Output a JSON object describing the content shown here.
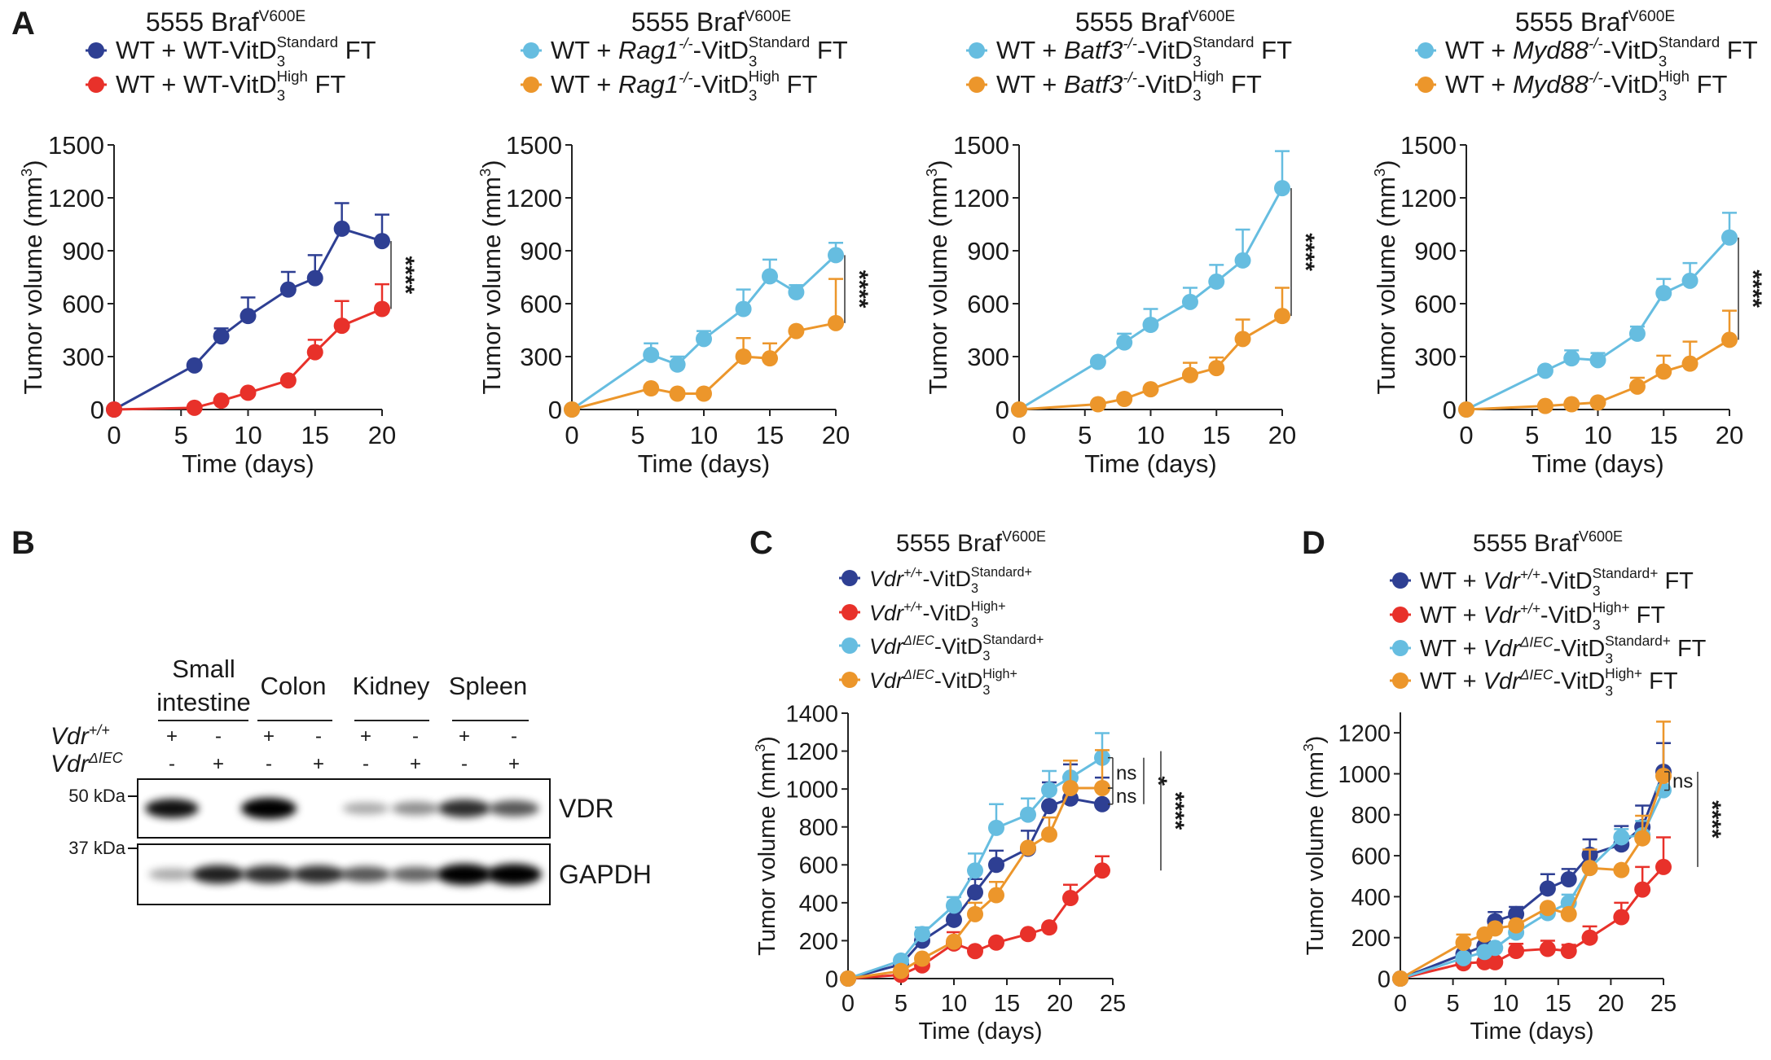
{
  "panel_letters": [
    "A",
    "B",
    "C",
    "D"
  ],
  "colors": {
    "navy": "#2e3f93",
    "red": "#e8312a",
    "light_blue": "#66bde0",
    "orange": "#ec962b"
  },
  "chart_data": [
    {
      "panel": "A",
      "type": "line",
      "title": "5555 Braf",
      "title_sup": "V600E",
      "xlabel": "Time (days)",
      "ylabel": "Tumor volume (mm",
      "ylabel_sup": "3",
      "ylabel_end": ")",
      "xlim": [
        0,
        20
      ],
      "ylim": [
        0,
        1500
      ],
      "xticks": [
        0,
        5,
        10,
        15,
        20
      ],
      "yticks": [
        0,
        300,
        600,
        900,
        1200,
        1500
      ],
      "series": [
        {
          "legend": {
            "pre": "WT + WT-VitD",
            "gene": "",
            "gsup": "",
            "mid": "",
            "sub": "3",
            "sup": "Standard",
            "post": " FT"
          },
          "color": "#2e3f93",
          "x": [
            0,
            6,
            8,
            10,
            13,
            15,
            17,
            20
          ],
          "y": [
            0,
            250,
            415,
            530,
            680,
            745,
            1025,
            955
          ],
          "err": [
            null,
            null,
            460,
            635,
            780,
            875,
            1170,
            1105
          ]
        },
        {
          "legend": {
            "pre": "WT + WT-VitD",
            "gene": "",
            "gsup": "",
            "mid": "",
            "sub": "3",
            "sup": "High",
            "post": " FT"
          },
          "color": "#e8312a",
          "x": [
            0,
            6,
            8,
            10,
            13,
            15,
            17,
            20
          ],
          "y": [
            0,
            10,
            50,
            95,
            165,
            325,
            475,
            570
          ],
          "err": [
            null,
            null,
            null,
            null,
            null,
            395,
            615,
            710
          ]
        }
      ],
      "significance": [
        {
          "label": "****",
          "from": 955,
          "to": 570,
          "level": 0
        }
      ]
    },
    {
      "panel": "A",
      "type": "line",
      "title": "5555 Braf",
      "title_sup": "V600E",
      "xlabel": "Time (days)",
      "ylabel": "Tumor volume (mm",
      "ylabel_sup": "3",
      "ylabel_end": ")",
      "xlim": [
        0,
        20
      ],
      "ylim": [
        0,
        1500
      ],
      "xticks": [
        0,
        5,
        10,
        15,
        20
      ],
      "yticks": [
        0,
        300,
        600,
        900,
        1200,
        1500
      ],
      "series": [
        {
          "legend": {
            "pre": "WT + ",
            "gene": "Rag1",
            "gsup": "-/-",
            "mid": "-VitD",
            "sub": "3",
            "sup": "Standard",
            "post": " FT"
          },
          "color": "#66bde0",
          "x": [
            0,
            6,
            8,
            10,
            13,
            15,
            17,
            20
          ],
          "y": [
            0,
            310,
            255,
            400,
            570,
            755,
            665,
            875
          ],
          "err": [
            null,
            375,
            300,
            445,
            680,
            850,
            705,
            945
          ]
        },
        {
          "legend": {
            "pre": "WT + ",
            "gene": "Rag1",
            "gsup": "-/-",
            "mid": "-VitD",
            "sub": "3",
            "sup": "High",
            "post": " FT"
          },
          "color": "#ec962b",
          "x": [
            0,
            6,
            8,
            10,
            13,
            15,
            17,
            20
          ],
          "y": [
            0,
            120,
            90,
            90,
            300,
            290,
            445,
            490
          ],
          "err": [
            null,
            null,
            null,
            null,
            405,
            375,
            445,
            740
          ]
        }
      ],
      "significance": [
        {
          "label": "****",
          "from": 875,
          "to": 490,
          "level": 0
        }
      ]
    },
    {
      "panel": "A",
      "type": "line",
      "title": "5555 Braf",
      "title_sup": "V600E",
      "xlabel": "Time (days)",
      "ylabel": "Tumor volume (mm",
      "ylabel_sup": "3",
      "ylabel_end": ")",
      "xlim": [
        0,
        20
      ],
      "ylim": [
        0,
        1500
      ],
      "xticks": [
        0,
        5,
        10,
        15,
        20
      ],
      "yticks": [
        0,
        300,
        600,
        900,
        1200,
        1500
      ],
      "series": [
        {
          "legend": {
            "pre": "WT + ",
            "gene": "Batf3",
            "gsup": "-/-",
            "mid": "-VitD",
            "sub": "3",
            "sup": "Standard",
            "post": " FT"
          },
          "color": "#66bde0",
          "x": [
            0,
            6,
            8,
            10,
            13,
            15,
            17,
            20
          ],
          "y": [
            0,
            270,
            380,
            480,
            610,
            725,
            845,
            1255
          ],
          "err": [
            null,
            null,
            430,
            570,
            690,
            820,
            1020,
            1465
          ]
        },
        {
          "legend": {
            "pre": "WT + ",
            "gene": "Batf3",
            "gsup": "-/-",
            "mid": "-VitD",
            "sub": "3",
            "sup": "High",
            "post": " FT"
          },
          "color": "#ec962b",
          "x": [
            0,
            6,
            8,
            10,
            13,
            15,
            17,
            20
          ],
          "y": [
            0,
            30,
            60,
            115,
            195,
            235,
            400,
            530
          ],
          "err": [
            null,
            null,
            null,
            null,
            265,
            295,
            510,
            690
          ]
        }
      ],
      "significance": [
        {
          "label": "****",
          "from": 1255,
          "to": 530,
          "level": 0
        }
      ]
    },
    {
      "panel": "A",
      "type": "line",
      "title": "5555 Braf",
      "title_sup": "V600E",
      "xlabel": "Time (days)",
      "ylabel": "Tumor volume (mm",
      "ylabel_sup": "3",
      "ylabel_end": ")",
      "xlim": [
        0,
        20
      ],
      "ylim": [
        0,
        1500
      ],
      "xticks": [
        0,
        5,
        10,
        15,
        20
      ],
      "yticks": [
        0,
        300,
        600,
        900,
        1200,
        1500
      ],
      "series": [
        {
          "legend": {
            "pre": "WT + ",
            "gene": "Myd88",
            "gsup": "-/-",
            "mid": "-VitD",
            "sub": "3",
            "sup": "Standard",
            "post": " FT"
          },
          "color": "#66bde0",
          "x": [
            0,
            6,
            8,
            10,
            13,
            15,
            17,
            20
          ],
          "y": [
            0,
            220,
            290,
            280,
            430,
            660,
            730,
            975
          ],
          "err": [
            null,
            null,
            335,
            320,
            470,
            740,
            830,
            1115
          ]
        },
        {
          "legend": {
            "pre": "WT + ",
            "gene": "Myd88",
            "gsup": "-/-",
            "mid": "-VitD",
            "sub": "3",
            "sup": "High",
            "post": " FT"
          },
          "color": "#ec962b",
          "x": [
            0,
            6,
            8,
            10,
            13,
            15,
            17,
            20
          ],
          "y": [
            0,
            20,
            30,
            40,
            130,
            215,
            260,
            395
          ],
          "err": [
            null,
            null,
            null,
            null,
            180,
            305,
            385,
            560
          ]
        }
      ],
      "significance": [
        {
          "label": "****",
          "from": 975,
          "to": 395,
          "level": 0
        }
      ]
    },
    {
      "panel": "C",
      "type": "line",
      "title": "5555 Braf",
      "title_sup": "V600E",
      "xlabel": "Time (days)",
      "ylabel": "Tumor volume (mm",
      "ylabel_sup": "3",
      "ylabel_end": ")",
      "xlim": [
        0,
        25
      ],
      "ylim": [
        0,
        1400
      ],
      "xticks": [
        0,
        5,
        10,
        15,
        20,
        25
      ],
      "yticks": [
        0,
        200,
        400,
        600,
        800,
        1000,
        1200,
        1400
      ],
      "series": [
        {
          "legend": {
            "pre": "",
            "gene": "Vdr",
            "gsup": "+/+",
            "mid": "-VitD",
            "sub": "3",
            "sup": "Standard+",
            "post": ""
          },
          "color": "#2e3f93",
          "x": [
            0,
            5,
            7,
            10,
            12,
            14,
            17,
            19,
            21,
            24
          ],
          "y": [
            0,
            75,
            200,
            310,
            455,
            600,
            685,
            910,
            950,
            920
          ],
          "err": [
            null,
            null,
            null,
            370,
            525,
            675,
            780,
            1035,
            1130,
            1060
          ]
        },
        {
          "legend": {
            "pre": "",
            "gene": "Vdr",
            "gsup": "+/+",
            "mid": "-VitD",
            "sub": "3",
            "sup": "High+",
            "post": ""
          },
          "color": "#e8312a",
          "x": [
            0,
            5,
            7,
            10,
            12,
            14,
            17,
            19,
            21,
            24
          ],
          "y": [
            0,
            20,
            70,
            185,
            145,
            190,
            235,
            270,
            425,
            570
          ],
          "err": [
            null,
            null,
            null,
            245,
            null,
            null,
            null,
            null,
            495,
            645
          ]
        },
        {
          "legend": {
            "pre": "",
            "gene": "Vdr",
            "gsup": "ΔIEC",
            "mid": "-VitD",
            "sub": "3",
            "sup": "Standard+",
            "post": ""
          },
          "color": "#66bde0",
          "x": [
            0,
            5,
            7,
            10,
            12,
            14,
            17,
            19,
            21,
            24
          ],
          "y": [
            0,
            95,
            235,
            385,
            570,
            795,
            865,
            995,
            1060,
            1165
          ],
          "err": [
            null,
            null,
            270,
            430,
            660,
            920,
            950,
            1095,
            1150,
            1295
          ]
        },
        {
          "legend": {
            "pre": "",
            "gene": "Vdr",
            "gsup": "ΔIEC",
            "mid": "-VitD",
            "sub": "3",
            "sup": "High+",
            "post": ""
          },
          "color": "#ec962b",
          "x": [
            0,
            5,
            7,
            10,
            12,
            14,
            17,
            19,
            21,
            24
          ],
          "y": [
            0,
            40,
            105,
            195,
            340,
            440,
            690,
            760,
            1005,
            1005
          ],
          "err": [
            null,
            null,
            null,
            null,
            400,
            510,
            null,
            850,
            1150,
            1205
          ]
        }
      ],
      "significance": [
        {
          "label": "ns",
          "from": 1165,
          "to": 1005,
          "level": 0
        },
        {
          "label": "ns",
          "from": 1005,
          "to": 920,
          "level": 0
        },
        {
          "label": "*",
          "from": 1165,
          "to": 920,
          "level": 1
        },
        {
          "label": "****",
          "from": 1200,
          "to": 570,
          "level": 2
        }
      ]
    },
    {
      "panel": "D",
      "type": "line",
      "title": "5555 Braf",
      "title_sup": "V600E",
      "xlabel": "Time (days)",
      "ylabel": "Tumor volume (mm",
      "ylabel_sup": "3",
      "ylabel_end": ")",
      "xlim": [
        0,
        25
      ],
      "ylim": [
        0,
        1300
      ],
      "xticks": [
        0,
        5,
        10,
        15,
        20,
        25
      ],
      "yticks": [
        0,
        200,
        400,
        600,
        800,
        1000,
        1200
      ],
      "series": [
        {
          "legend": {
            "pre": "WT + ",
            "gene": "Vdr",
            "gsup": "+/+",
            "mid": "-VitD",
            "sub": "3",
            "sup": "Standard+",
            "post": " FT"
          },
          "color": "#2e3f93",
          "x": [
            0,
            6,
            8,
            9,
            11,
            14,
            16,
            18,
            21,
            23,
            25
          ],
          "y": [
            0,
            120,
            160,
            280,
            315,
            440,
            485,
            605,
            655,
            740,
            1010
          ],
          "err": [
            null,
            null,
            null,
            325,
            350,
            510,
            535,
            680,
            745,
            845,
            1150
          ]
        },
        {
          "legend": {
            "pre": "WT + ",
            "gene": "Vdr",
            "gsup": "+/+",
            "mid": "-VitD",
            "sub": "3",
            "sup": "High+",
            "post": " FT"
          },
          "color": "#e8312a",
          "x": [
            0,
            6,
            8,
            9,
            11,
            14,
            16,
            18,
            21,
            23,
            25
          ],
          "y": [
            0,
            75,
            80,
            80,
            135,
            145,
            135,
            200,
            300,
            435,
            545
          ],
          "err": [
            null,
            null,
            null,
            null,
            170,
            185,
            165,
            255,
            370,
            545,
            690
          ]
        },
        {
          "legend": {
            "pre": "WT + ",
            "gene": "Vdr",
            "gsup": "ΔIEC",
            "mid": "-VitD",
            "sub": "3",
            "sup": "Standard+",
            "post": " FT"
          },
          "color": "#66bde0",
          "x": [
            0,
            6,
            8,
            9,
            11,
            14,
            16,
            18,
            21,
            23,
            25
          ],
          "y": [
            0,
            100,
            130,
            150,
            225,
            320,
            370,
            540,
            690,
            700,
            920
          ],
          "err": [
            null,
            null,
            null,
            null,
            null,
            null,
            410,
            null,
            730,
            770,
            null
          ]
        },
        {
          "legend": {
            "pre": "WT + ",
            "gene": "Vdr",
            "gsup": "ΔIEC",
            "mid": "-VitD",
            "sub": "3",
            "sup": "High+",
            "post": " FT"
          },
          "color": "#ec962b",
          "x": [
            0,
            6,
            8,
            9,
            11,
            14,
            16,
            18,
            21,
            23,
            25
          ],
          "y": [
            0,
            175,
            215,
            245,
            260,
            345,
            315,
            540,
            530,
            685,
            990
          ],
          "err": [
            null,
            215,
            null,
            null,
            null,
            null,
            null,
            630,
            null,
            795,
            1255
          ]
        }
      ],
      "significance": [
        {
          "label": "ns",
          "from": 1010,
          "to": 920,
          "level": 0
        },
        {
          "label": "****",
          "from": 1010,
          "to": 545,
          "level": 1
        }
      ]
    }
  ],
  "blot": {
    "tissues": [
      {
        "line1": "Small",
        "line2": "intestine"
      },
      {
        "line1": "Colon",
        "line2": ""
      },
      {
        "line1": "Kidney",
        "line2": ""
      },
      {
        "line1": "Spleen",
        "line2": ""
      }
    ],
    "genotypes": [
      {
        "gene": "Vdr",
        "sup": "+/+",
        "marks": [
          "+",
          "-",
          "+",
          "-",
          "+",
          "-",
          "+",
          "-"
        ]
      },
      {
        "gene": "Vdr",
        "sup": "ΔIEC",
        "marks": [
          "-",
          "+",
          "-",
          "+",
          "-",
          "+",
          "-",
          "+"
        ]
      }
    ],
    "markers": [
      "50 kDa",
      "37 kDa"
    ],
    "proteins": [
      {
        "name": "VDR",
        "intensity": [
          0.85,
          0,
          1,
          0,
          0.3,
          0.4,
          0.75,
          0.6
        ]
      },
      {
        "name": "GAPDH",
        "intensity": [
          0.3,
          0.8,
          0.75,
          0.75,
          0.6,
          0.55,
          1,
          1
        ]
      }
    ]
  }
}
